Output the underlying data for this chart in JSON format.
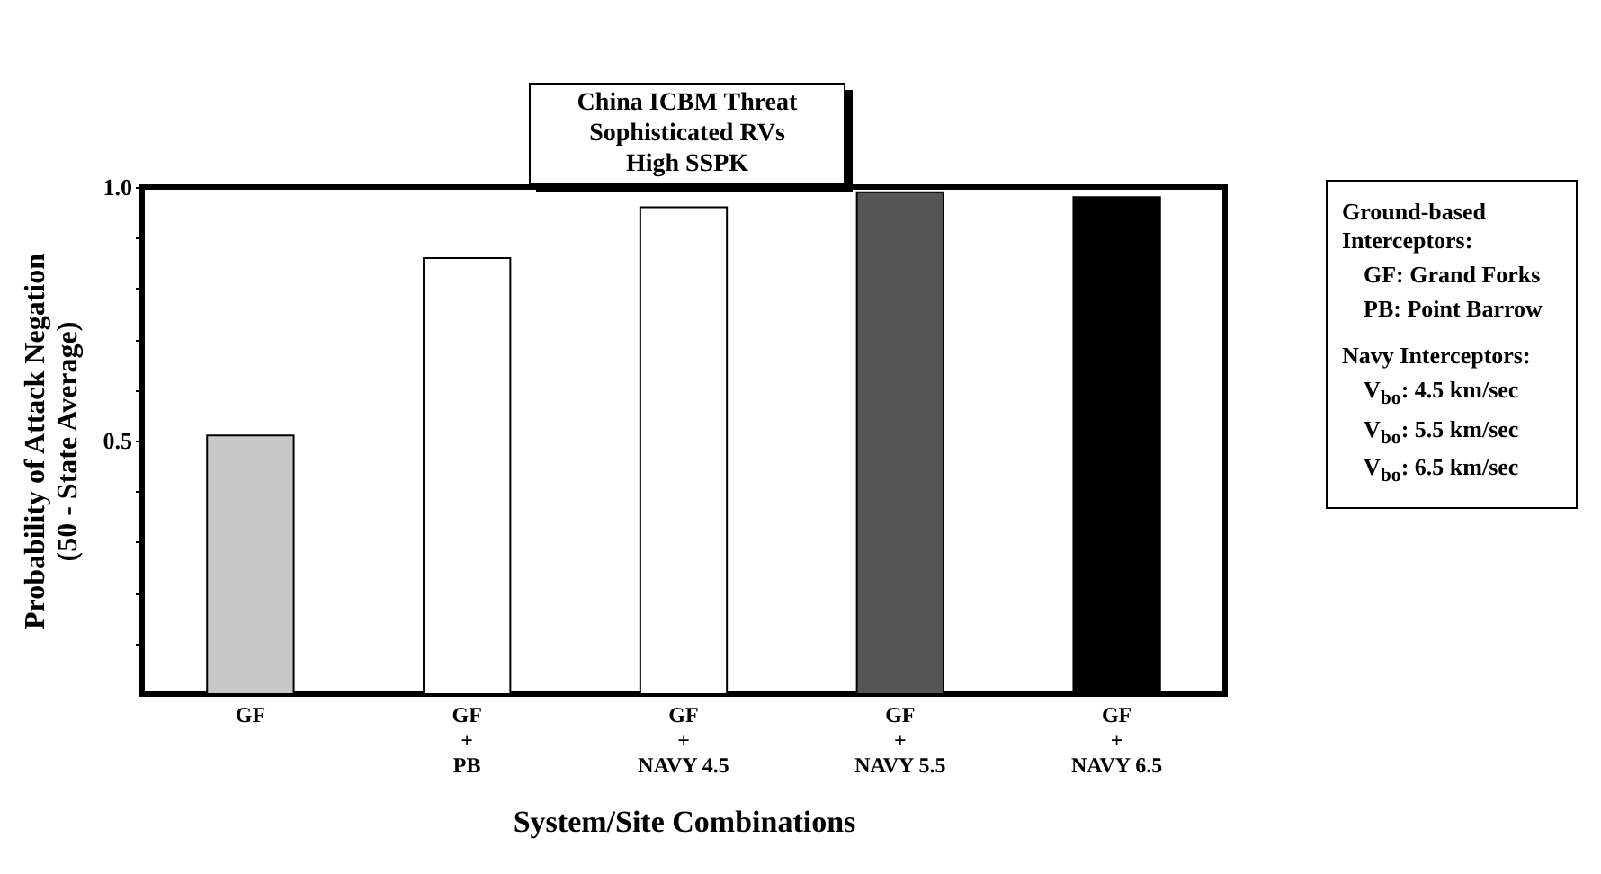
{
  "chart_data": {
    "type": "bar",
    "title": "China ICBM Threat\nSophisticated RVs\nHigh SSPK",
    "xlabel": "System/Site Combinations",
    "ylabel": "Probability of Attack Negation\n(50 - State Average)",
    "categories": [
      "GF",
      "GF\n+\nPB",
      "GF\n+\nNAVY 4.5",
      "GF\n+\nNAVY 5.5",
      "GF\n+\nNAVY 6.5"
    ],
    "values": [
      0.51,
      0.86,
      0.96,
      0.99,
      0.98
    ],
    "colors": [
      "#c8c8c8",
      "#ffffff",
      "#ffffff",
      "#555555",
      "#000000"
    ],
    "ylim": [
      0,
      1.0
    ],
    "yticks": [
      {
        "value": 0.1,
        "label": null
      },
      {
        "value": 0.2,
        "label": null
      },
      {
        "value": 0.3,
        "label": null
      },
      {
        "value": 0.4,
        "label": null
      },
      0.5,
      {
        "value": 0.6,
        "label": null
      },
      {
        "value": 0.7,
        "label": null
      },
      {
        "value": 0.8,
        "label": null
      },
      {
        "value": 0.9,
        "label": null
      },
      {
        "value": 1.0,
        "label": "1.0"
      }
    ],
    "grid": false,
    "annotations": [
      "Ground-based Interceptors:",
      "GF:  Grand Forks",
      "PB:  Point Barrow",
      "Navy Interceptors:",
      "V$_{bo}$:  4.5 km/sec",
      "V$_{bo}$:  5.5 km/sec",
      "V$_{bo}$:  6.5 km/sec"
    ]
  }
}
